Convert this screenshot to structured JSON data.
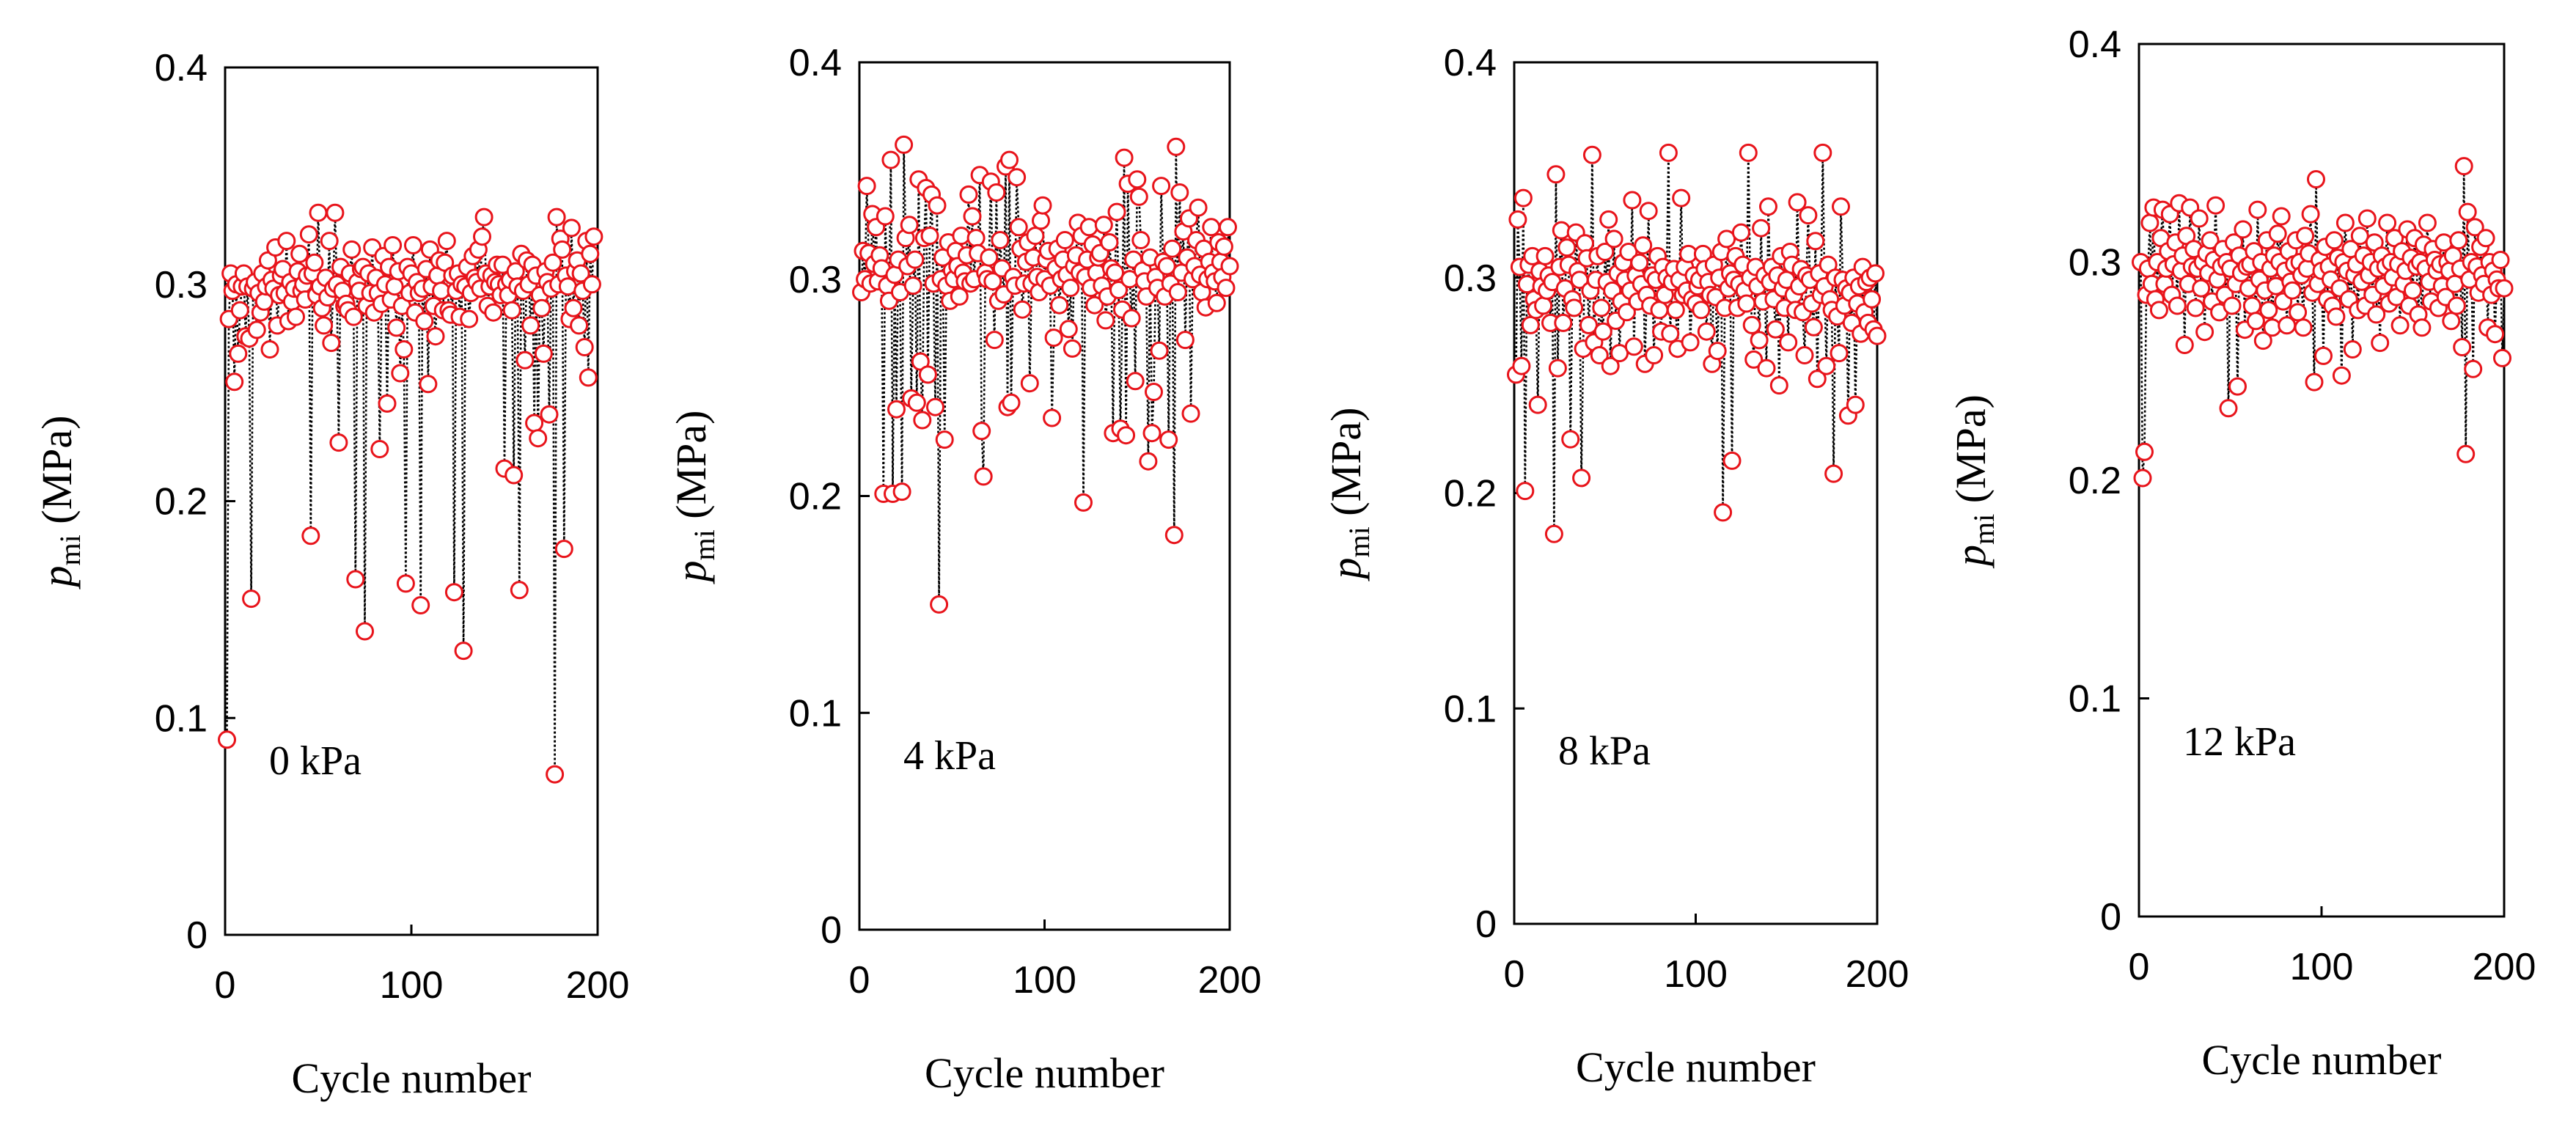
{
  "colors": {
    "marker": "#e8141b",
    "line": "#000000",
    "axis": "#000000",
    "marker_fill": "#ffffff"
  },
  "chart_data": [
    {
      "type": "line",
      "annotation": "0 kPa",
      "xlabel": "Cycle number",
      "ylabel_main": "p",
      "ylabel_sub": "mi",
      "ylabel_rest": " (MPa)",
      "xlim": [
        0,
        200
      ],
      "ylim": [
        0,
        0.4
      ],
      "xticks": [
        "0",
        "100",
        "200"
      ],
      "yticks": [
        "0",
        "0.1",
        "0.2",
        "0.3",
        "0.4"
      ],
      "series": [
        {
          "name": "0 kPa",
          "x_start": 1,
          "x_step": 1,
          "values": [
            0.09,
            0.284,
            0.305,
            0.297,
            0.255,
            0.3,
            0.268,
            0.288,
            0.299,
            0.305,
            0.276,
            0.299,
            0.275,
            0.155,
            0.298,
            0.301,
            0.279,
            0.296,
            0.287,
            0.305,
            0.292,
            0.299,
            0.311,
            0.27,
            0.302,
            0.298,
            0.317,
            0.281,
            0.295,
            0.304,
            0.307,
            0.296,
            0.32,
            0.283,
            0.301,
            0.292,
            0.298,
            0.285,
            0.306,
            0.314,
            0.297,
            0.3,
            0.293,
            0.304,
            0.323,
            0.184,
            0.305,
            0.31,
            0.295,
            0.333,
            0.299,
            0.289,
            0.281,
            0.303,
            0.294,
            0.32,
            0.273,
            0.298,
            0.333,
            0.3,
            0.227,
            0.308,
            0.297,
            0.29,
            0.291,
            0.288,
            0.305,
            0.316,
            0.285,
            0.164,
            0.301,
            0.297,
            0.307,
            0.308,
            0.14,
            0.29,
            0.305,
            0.296,
            0.317,
            0.287,
            0.303,
            0.296,
            0.224,
            0.291,
            0.313,
            0.3,
            0.245,
            0.308,
            0.293,
            0.318,
            0.299,
            0.28,
            0.306,
            0.259,
            0.29,
            0.27,
            0.162,
            0.308,
            0.296,
            0.305,
            0.318,
            0.287,
            0.301,
            0.296,
            0.152,
            0.298,
            0.283,
            0.307,
            0.254,
            0.316,
            0.299,
            0.29,
            0.276,
            0.304,
            0.311,
            0.297,
            0.288,
            0.31,
            0.32,
            0.288,
            0.286,
            0.304,
            0.158,
            0.297,
            0.305,
            0.285,
            0.3,
            0.131,
            0.299,
            0.308,
            0.284,
            0.296,
            0.313,
            0.303,
            0.301,
            0.316,
            0.298,
            0.322,
            0.331,
            0.305,
            0.29,
            0.299,
            0.304,
            0.287,
            0.301,
            0.309,
            0.3,
            0.295,
            0.309,
            0.215,
            0.3,
            0.295,
            0.302,
            0.288,
            0.212,
            0.306,
            0.299,
            0.159,
            0.314,
            0.297,
            0.265,
            0.311,
            0.3,
            0.281,
            0.309,
            0.236,
            0.304,
            0.229,
            0.295,
            0.289,
            0.268,
            0.306,
            0.301,
            0.24,
            0.298,
            0.31,
            0.074,
            0.331,
            0.3,
            0.321,
            0.316,
            0.178,
            0.304,
            0.299,
            0.284,
            0.326,
            0.289,
            0.306,
            0.311,
            0.281,
            0.305,
            0.297,
            0.271,
            0.32,
            0.257,
            0.314,
            0.3,
            0.322
          ]
        }
      ]
    },
    {
      "type": "line",
      "annotation": "4 kPa",
      "xlabel": "Cycle number",
      "ylabel_main": "p",
      "ylabel_sub": "mi",
      "ylabel_rest": " (MPa)",
      "xlim": [
        0,
        200
      ],
      "ylim": [
        0,
        0.4
      ],
      "xticks": [
        "0",
        "100",
        "200"
      ],
      "yticks": [
        "0",
        "0.1",
        "0.2",
        "0.3",
        "0.4"
      ],
      "series": [
        {
          "name": "4 kPa",
          "x_start": 1,
          "x_step": 1,
          "values": [
            0.294,
            0.313,
            0.3,
            0.343,
            0.312,
            0.298,
            0.33,
            0.307,
            0.324,
            0.299,
            0.311,
            0.305,
            0.201,
            0.329,
            0.297,
            0.29,
            0.355,
            0.201,
            0.302,
            0.24,
            0.309,
            0.294,
            0.202,
            0.362,
            0.319,
            0.306,
            0.325,
            0.245,
            0.297,
            0.309,
            0.243,
            0.346,
            0.262,
            0.235,
            0.319,
            0.342,
            0.256,
            0.32,
            0.339,
            0.298,
            0.241,
            0.334,
            0.15,
            0.3,
            0.31,
            0.226,
            0.297,
            0.317,
            0.29,
            0.304,
            0.3,
            0.313,
            0.306,
            0.292,
            0.32,
            0.303,
            0.299,
            0.311,
            0.339,
            0.298,
            0.329,
            0.3,
            0.319,
            0.312,
            0.348,
            0.23,
            0.209,
            0.303,
            0.3,
            0.31,
            0.345,
            0.299,
            0.272,
            0.34,
            0.29,
            0.318,
            0.305,
            0.293,
            0.352,
            0.241,
            0.355,
            0.243,
            0.301,
            0.297,
            0.347,
            0.324,
            0.314,
            0.286,
            0.298,
            0.308,
            0.317,
            0.252,
            0.298,
            0.31,
            0.32,
            0.301,
            0.294,
            0.327,
            0.334,
            0.3,
            0.309,
            0.313,
            0.297,
            0.236,
            0.273,
            0.305,
            0.314,
            0.288,
            0.3,
            0.309,
            0.318,
            0.302,
            0.277,
            0.296,
            0.268,
            0.306,
            0.311,
            0.326,
            0.303,
            0.32,
            0.197,
            0.301,
            0.309,
            0.324,
            0.296,
            0.316,
            0.288,
            0.303,
            0.31,
            0.312,
            0.297,
            0.325,
            0.281,
            0.292,
            0.317,
            0.305,
            0.229,
            0.303,
            0.331,
            0.295,
            0.231,
            0.286,
            0.356,
            0.228,
            0.344,
            0.3,
            0.282,
            0.309,
            0.253,
            0.346,
            0.338,
            0.318,
            0.304,
            0.299,
            0.292,
            0.216,
            0.31,
            0.229,
            0.248,
            0.301,
            0.296,
            0.267,
            0.343,
            0.308,
            0.292,
            0.306,
            0.226,
            0.298,
            0.314,
            0.182,
            0.361,
            0.294,
            0.34,
            0.303,
            0.322,
            0.272,
            0.31,
            0.328,
            0.238,
            0.3,
            0.306,
            0.318,
            0.333,
            0.302,
            0.294,
            0.314,
            0.287,
            0.3,
            0.308,
            0.324,
            0.303,
            0.299,
            0.289,
            0.317,
            0.308,
            0.301,
            0.315,
            0.296,
            0.324,
            0.306
          ]
        }
      ]
    },
    {
      "type": "line",
      "annotation": "8 kPa",
      "xlabel": "Cycle number",
      "ylabel_main": "p",
      "ylabel_sub": "mi",
      "ylabel_rest": " (MPa)",
      "xlim": [
        0,
        200
      ],
      "ylim": [
        0,
        0.4
      ],
      "xticks": [
        "0",
        "100",
        "200"
      ],
      "yticks": [
        "0",
        "0.1",
        "0.2",
        "0.3",
        "0.4"
      ],
      "series": [
        {
          "name": "8 kPa",
          "x_start": 1,
          "x_step": 1,
          "values": [
            0.255,
            0.327,
            0.305,
            0.259,
            0.337,
            0.201,
            0.297,
            0.306,
            0.278,
            0.31,
            0.29,
            0.285,
            0.241,
            0.303,
            0.296,
            0.287,
            0.31,
            0.294,
            0.301,
            0.279,
            0.298,
            0.181,
            0.348,
            0.258,
            0.305,
            0.322,
            0.279,
            0.295,
            0.314,
            0.306,
            0.225,
            0.29,
            0.286,
            0.321,
            0.303,
            0.299,
            0.207,
            0.267,
            0.316,
            0.309,
            0.278,
            0.294,
            0.357,
            0.27,
            0.299,
            0.31,
            0.264,
            0.286,
            0.275,
            0.312,
            0.298,
            0.327,
            0.259,
            0.294,
            0.318,
            0.28,
            0.302,
            0.265,
            0.289,
            0.307,
            0.299,
            0.284,
            0.312,
            0.294,
            0.336,
            0.268,
            0.301,
            0.289,
            0.307,
            0.297,
            0.315,
            0.26,
            0.292,
            0.331,
            0.287,
            0.301,
            0.264,
            0.299,
            0.31,
            0.285,
            0.275,
            0.305,
            0.292,
            0.3,
            0.358,
            0.274,
            0.298,
            0.304,
            0.285,
            0.267,
            0.299,
            0.337,
            0.292,
            0.305,
            0.294,
            0.311,
            0.27,
            0.29,
            0.301,
            0.288,
            0.296,
            0.299,
            0.285,
            0.311,
            0.304,
            0.275,
            0.298,
            0.292,
            0.26,
            0.306,
            0.291,
            0.266,
            0.3,
            0.312,
            0.191,
            0.286,
            0.318,
            0.295,
            0.302,
            0.215,
            0.299,
            0.31,
            0.286,
            0.297,
            0.321,
            0.306,
            0.294,
            0.288,
            0.358,
            0.3,
            0.278,
            0.262,
            0.305,
            0.296,
            0.271,
            0.323,
            0.289,
            0.301,
            0.258,
            0.333,
            0.298,
            0.305,
            0.29,
            0.276,
            0.301,
            0.25,
            0.31,
            0.295,
            0.286,
            0.299,
            0.27,
            0.312,
            0.306,
            0.292,
            0.285,
            0.335,
            0.296,
            0.304,
            0.284,
            0.264,
            0.301,
            0.329,
            0.299,
            0.288,
            0.277,
            0.317,
            0.253,
            0.302,
            0.292,
            0.358,
            0.296,
            0.259,
            0.306,
            0.29,
            0.285,
            0.209,
            0.3,
            0.282,
            0.265,
            0.333,
            0.299,
            0.287,
            0.295,
            0.236,
            0.293,
            0.279,
            0.3,
            0.241,
            0.288,
            0.296,
            0.274,
            0.305,
            0.284,
            0.298,
            0.279,
            0.3,
            0.29,
            0.276,
            0.302,
            0.273
          ]
        }
      ]
    },
    {
      "type": "line",
      "annotation": "12 kPa",
      "xlabel": "Cycle number",
      "ylabel_main": "p",
      "ylabel_sub": "mi",
      "ylabel_rest": " (MPa)",
      "xlim": [
        0,
        200
      ],
      "ylim": [
        0,
        0.4
      ],
      "xticks": [
        "0",
        "100",
        "200"
      ],
      "yticks": [
        "0",
        "0.1",
        "0.2",
        "0.3",
        "0.4"
      ],
      "series": [
        {
          "name": "12 kPa",
          "x_start": 1,
          "x_step": 1,
          "values": [
            0.3,
            0.201,
            0.213,
            0.285,
            0.297,
            0.318,
            0.29,
            0.325,
            0.283,
            0.3,
            0.278,
            0.311,
            0.324,
            0.29,
            0.297,
            0.305,
            0.322,
            0.285,
            0.299,
            0.309,
            0.28,
            0.327,
            0.296,
            0.303,
            0.262,
            0.312,
            0.29,
            0.325,
            0.298,
            0.306,
            0.279,
            0.297,
            0.32,
            0.288,
            0.3,
            0.268,
            0.304,
            0.295,
            0.31,
            0.282,
            0.301,
            0.326,
            0.292,
            0.277,
            0.298,
            0.306,
            0.285,
            0.3,
            0.233,
            0.297,
            0.28,
            0.309,
            0.29,
            0.243,
            0.303,
            0.295,
            0.315,
            0.269,
            0.298,
            0.288,
            0.299,
            0.28,
            0.305,
            0.273,
            0.324,
            0.292,
            0.3,
            0.264,
            0.287,
            0.31,
            0.278,
            0.297,
            0.27,
            0.303,
            0.289,
            0.313,
            0.3,
            0.321,
            0.282,
            0.296,
            0.271,
            0.305,
            0.291,
            0.287,
            0.299,
            0.31,
            0.277,
            0.3,
            0.294,
            0.27,
            0.312,
            0.297,
            0.304,
            0.322,
            0.286,
            0.245,
            0.338,
            0.29,
            0.301,
            0.296,
            0.257,
            0.307,
            0.283,
            0.298,
            0.292,
            0.28,
            0.31,
            0.275,
            0.302,
            0.288,
            0.248,
            0.3,
            0.318,
            0.296,
            0.283,
            0.306,
            0.26,
            0.294,
            0.299,
            0.278,
            0.312,
            0.291,
            0.303,
            0.28,
            0.32,
            0.294,
            0.3,
            0.285,
            0.309,
            0.276,
            0.297,
            0.263,
            0.303,
            0.289,
            0.298,
            0.318,
            0.281,
            0.3,
            0.293,
            0.311,
            0.284,
            0.299,
            0.271,
            0.305,
            0.29,
            0.296,
            0.315,
            0.28,
            0.302,
            0.287,
            0.311,
            0.298,
            0.276,
            0.3,
            0.27,
            0.308,
            0.297,
            0.318,
            0.291,
            0.282,
            0.306,
            0.301,
            0.296,
            0.279,
            0.299,
            0.289,
            0.309,
            0.284,
            0.3,
            0.296,
            0.273,
            0.303,
            0.29,
            0.28,
            0.31,
            0.297,
            0.261,
            0.344,
            0.212,
            0.323,
            0.292,
            0.3,
            0.251,
            0.316,
            0.298,
            0.286,
            0.307,
            0.294,
            0.29,
            0.311,
            0.27,
            0.3,
            0.285,
            0.296,
            0.267,
            0.292,
            0.288,
            0.301,
            0.256,
            0.288
          ]
        }
      ]
    }
  ]
}
